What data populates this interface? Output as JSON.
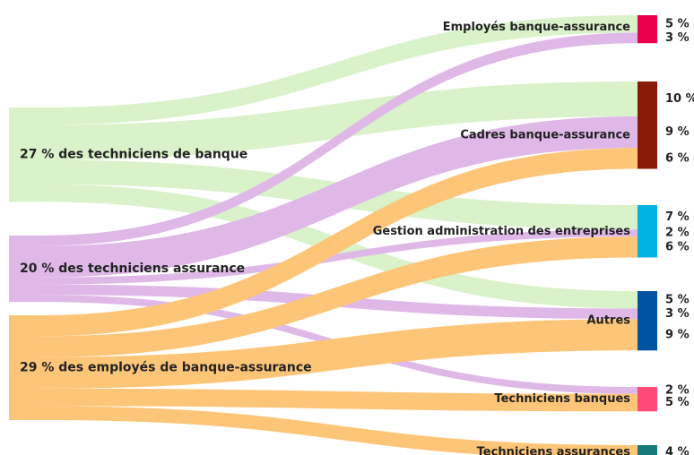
{
  "chart_data": {
    "type": "sankey",
    "sources": [
      {
        "name": "27 % des techniciens de banque",
        "color": "#d9f2c9"
      },
      {
        "name": "20 % des techniciens assurance",
        "color": "#dfb8e8"
      },
      {
        "name": "29 % des employés de banque-assurance",
        "color": "#fdc578"
      }
    ],
    "targets": [
      {
        "name": "Employés banque-assurance",
        "color": "#e8004c"
      },
      {
        "name": "Cadres banque-assurance",
        "color": "#8a1a08"
      },
      {
        "name": "Gestion administration des entreprises",
        "color": "#00b3e3"
      },
      {
        "name": "Autres",
        "color": "#0053a0"
      },
      {
        "name": "Techniciens banques",
        "color": "#ff4a78"
      },
      {
        "name": "Techniciens assurances",
        "color": "#167a7a"
      }
    ],
    "links": [
      {
        "source": 0,
        "target": 0,
        "value": 5,
        "value_label": "5 %"
      },
      {
        "source": 0,
        "target": 1,
        "value": 10,
        "value_label": "10 %"
      },
      {
        "source": 0,
        "target": 2,
        "value": 7,
        "value_label": "7 %"
      },
      {
        "source": 0,
        "target": 3,
        "value": 5,
        "value_label": "5 %"
      },
      {
        "source": 1,
        "target": 0,
        "value": 3,
        "value_label": "3 %"
      },
      {
        "source": 1,
        "target": 1,
        "value": 9,
        "value_label": "9 %"
      },
      {
        "source": 1,
        "target": 2,
        "value": 2,
        "value_label": "2 %"
      },
      {
        "source": 1,
        "target": 3,
        "value": 3,
        "value_label": "3 %"
      },
      {
        "source": 1,
        "target": 4,
        "value": 2,
        "value_label": "2 %"
      },
      {
        "source": 2,
        "target": 1,
        "value": 6,
        "value_label": "6 %"
      },
      {
        "source": 2,
        "target": 2,
        "value": 6,
        "value_label": "6 %"
      },
      {
        "source": 2,
        "target": 3,
        "value": 9,
        "value_label": "9 %"
      },
      {
        "source": 2,
        "target": 4,
        "value": 5,
        "value_label": "5 %"
      },
      {
        "source": 2,
        "target": 5,
        "value": 4,
        "value_label": "4 %"
      }
    ]
  }
}
